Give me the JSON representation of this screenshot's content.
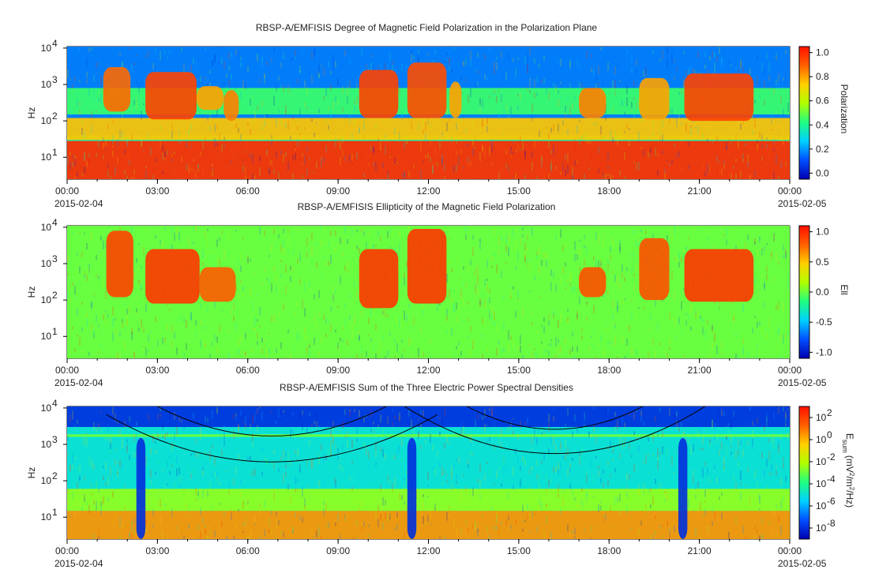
{
  "chart_data": [
    {
      "type": "heatmap",
      "title": "RBSP-A/EMFISIS  Degree of Magnetic Field Polarization in the Polarization Plane",
      "ylabel": "Hz",
      "yscale": "log",
      "ylim": [
        2.5,
        11000
      ],
      "y_ticks": [
        {
          "value": 10,
          "label": "10",
          "exp": "1"
        },
        {
          "value": 100,
          "label": "10",
          "exp": "2"
        },
        {
          "value": 1000,
          "label": "10",
          "exp": "3"
        },
        {
          "value": 10000,
          "label": "10",
          "exp": "4"
        }
      ],
      "x_ticks": [
        "00:00",
        "03:00",
        "06:00",
        "09:00",
        "12:00",
        "15:00",
        "18:00",
        "21:00",
        "00:00"
      ],
      "x_start_date": "2015-02-04",
      "x_end_date": "2015-02-05",
      "colorbar": {
        "label": "Polarization",
        "range": [
          -0.05,
          1.05
        ],
        "ticks": [
          "0.0",
          "0.2",
          "0.4",
          "0.6",
          "0.8",
          "1.0"
        ],
        "tick_values": [
          0,
          0.2,
          0.4,
          0.6,
          0.8,
          1.0
        ],
        "colors": [
          "#0000b0",
          "#0050ff",
          "#00d0ff",
          "#20ff80",
          "#b0ff00",
          "#ffd000",
          "#ff6000",
          "#ff1000"
        ]
      },
      "background_level": 0.36,
      "bands": [
        {
          "name": "high-frequency band",
          "f1": 40,
          "f2": 11000,
          "value": 0.15
        },
        {
          "name": "mid band",
          "f1": 150,
          "f2": 800,
          "value": 0.45
        },
        {
          "name": "upper-lower band",
          "f1": 30,
          "f2": 120,
          "value": 0.75
        },
        {
          "name": "low band",
          "f1": 2.5,
          "f2": 28,
          "value": 1.0
        }
      ],
      "events": [
        {
          "t1": 1.2,
          "t2": 2.1,
          "f1": 180,
          "f2": 3000,
          "value": 0.88
        },
        {
          "t1": 2.6,
          "t2": 4.3,
          "f1": 110,
          "f2": 2200,
          "value": 0.95
        },
        {
          "t1": 4.3,
          "t2": 5.2,
          "f1": 200,
          "f2": 900,
          "value": 0.8
        },
        {
          "t1": 5.2,
          "t2": 5.7,
          "f1": 100,
          "f2": 700,
          "value": 0.85
        },
        {
          "t1": 9.7,
          "t2": 11.0,
          "f1": 120,
          "f2": 2500,
          "value": 0.95
        },
        {
          "t1": 11.3,
          "t2": 12.6,
          "f1": 120,
          "f2": 4000,
          "value": 0.93
        },
        {
          "t1": 12.7,
          "t2": 13.1,
          "f1": 120,
          "f2": 1200,
          "value": 0.8
        },
        {
          "t1": 17.0,
          "t2": 17.9,
          "f1": 120,
          "f2": 800,
          "value": 0.85
        },
        {
          "t1": 19.0,
          "t2": 20.0,
          "f1": 110,
          "f2": 1500,
          "value": 0.8
        },
        {
          "t1": 20.5,
          "t2": 22.8,
          "f1": 100,
          "f2": 2000,
          "value": 0.95
        }
      ]
    },
    {
      "type": "heatmap",
      "title": "RBSP-A/EMFISIS  Ellipticity of the Magnetic Field Polarization",
      "ylabel": "Hz",
      "yscale": "log",
      "ylim": [
        2.5,
        11000
      ],
      "y_ticks": [
        {
          "value": 10,
          "label": "10",
          "exp": "1"
        },
        {
          "value": 100,
          "label": "10",
          "exp": "2"
        },
        {
          "value": 1000,
          "label": "10",
          "exp": "3"
        },
        {
          "value": 10000,
          "label": "10",
          "exp": "4"
        }
      ],
      "x_ticks": [
        "00:00",
        "03:00",
        "06:00",
        "09:00",
        "12:00",
        "15:00",
        "18:00",
        "21:00",
        "00:00"
      ],
      "x_start_date": "2015-02-04",
      "x_end_date": "2015-02-05",
      "colorbar": {
        "label": "Ell",
        "range": [
          -1.1,
          1.1
        ],
        "ticks": [
          "-1.0",
          "-0.5",
          "0.0",
          "0.5",
          "1.0"
        ],
        "tick_values": [
          -1.0,
          -0.5,
          0.0,
          0.5,
          1.0
        ],
        "colors": [
          "#0000b0",
          "#0050ff",
          "#00d0ff",
          "#20ff80",
          "#b0ff00",
          "#ffd000",
          "#ff6000",
          "#ff1000"
        ]
      },
      "background_level": 0.0,
      "bands": [],
      "events": [
        {
          "t1": 1.3,
          "t2": 2.2,
          "f1": 120,
          "f2": 8000,
          "value": 0.9
        },
        {
          "t1": 2.6,
          "t2": 4.4,
          "f1": 80,
          "f2": 2500,
          "value": 0.95
        },
        {
          "t1": 4.4,
          "t2": 5.6,
          "f1": 90,
          "f2": 800,
          "value": 0.8
        },
        {
          "t1": 9.7,
          "t2": 11.0,
          "f1": 60,
          "f2": 2500,
          "value": 0.95
        },
        {
          "t1": 11.3,
          "t2": 12.6,
          "f1": 80,
          "f2": 9000,
          "value": 0.95
        },
        {
          "t1": 17.0,
          "t2": 17.9,
          "f1": 120,
          "f2": 800,
          "value": 0.85
        },
        {
          "t1": 19.0,
          "t2": 20.0,
          "f1": 100,
          "f2": 5000,
          "value": 0.85
        },
        {
          "t1": 20.5,
          "t2": 22.8,
          "f1": 90,
          "f2": 2500,
          "value": 0.95
        }
      ]
    },
    {
      "type": "heatmap",
      "title": "RBSP-A/EMFISIS  Sum of the Three Electric Power Spectral Densities",
      "ylabel": "Hz",
      "yscale": "log",
      "ylim": [
        2.5,
        11000
      ],
      "y_ticks": [
        {
          "value": 10,
          "label": "10",
          "exp": "1"
        },
        {
          "value": 100,
          "label": "10",
          "exp": "2"
        },
        {
          "value": 1000,
          "label": "10",
          "exp": "3"
        },
        {
          "value": 10000,
          "label": "10",
          "exp": "4"
        }
      ],
      "x_ticks": [
        "00:00",
        "03:00",
        "06:00",
        "09:00",
        "12:00",
        "15:00",
        "18:00",
        "21:00",
        "00:00"
      ],
      "x_start_date": "2015-02-04",
      "x_end_date": "2015-02-05",
      "colorbar": {
        "label": "E",
        "label_sub": "sum",
        "label_units": "(mV",
        "label_units_sup1": "2",
        "label_units_mid": "/m",
        "label_units_sup2": "2",
        "label_units_end": "/Hz)",
        "range": [
          -9,
          3
        ],
        "ticks": [
          {
            "base": "10",
            "exp": "2"
          },
          {
            "base": "10",
            "exp": "0"
          },
          {
            "base": "10",
            "exp": "-2"
          },
          {
            "base": "10",
            "exp": "-4"
          },
          {
            "base": "10",
            "exp": "-6"
          },
          {
            "base": "10",
            "exp": "-8"
          }
        ],
        "tick_values": [
          2,
          0,
          -2,
          -4,
          -6,
          -8
        ],
        "colors": [
          "#0000b0",
          "#0050ff",
          "#00d0ff",
          "#20ff80",
          "#b0ff00",
          "#ffd000",
          "#ff6000",
          "#ff1000"
        ]
      },
      "background_level": -5.0,
      "bands": [
        {
          "name": "high-frequency band",
          "f1": 3000,
          "f2": 11000,
          "value": -8
        },
        {
          "name": "line",
          "f1": 1600,
          "f2": 1900,
          "value": -3
        },
        {
          "name": "low frequency",
          "f1": 2.5,
          "f2": 15,
          "value": 0.5
        },
        {
          "name": "low-mid",
          "f1": 15,
          "f2": 60,
          "value": -2.5
        }
      ],
      "events": [
        {
          "t1": 2.3,
          "t2": 2.6,
          "f1": 2.5,
          "f2": 1500,
          "value": -8
        },
        {
          "t1": 11.3,
          "t2": 11.6,
          "f1": 2.5,
          "f2": 1500,
          "value": -8
        },
        {
          "t1": 20.3,
          "t2": 20.6,
          "f1": 2.5,
          "f2": 1500,
          "value": -8
        }
      ],
      "curves": [
        {
          "t0": 6.8,
          "f_min": 1700,
          "half_width_h": 4.8
        },
        {
          "t0": 6.8,
          "f_min": 330,
          "half_width_h": 5.5
        },
        {
          "t0": 16.2,
          "f_min": 2600,
          "half_width_h": 4.2
        },
        {
          "t0": 16.2,
          "f_min": 560,
          "half_width_h": 5.0
        }
      ]
    }
  ]
}
